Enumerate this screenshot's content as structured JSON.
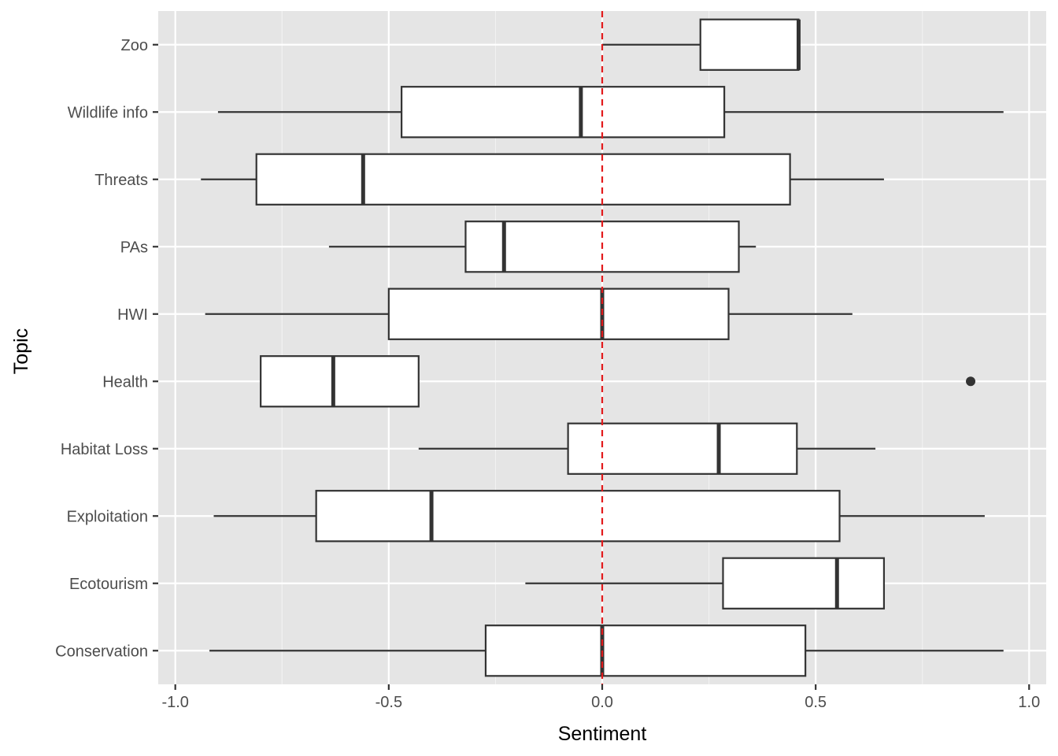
{
  "chart_data": {
    "type": "boxplot",
    "orientation": "horizontal",
    "xlabel": "Sentiment",
    "ylabel": "Topic",
    "xlim": [
      -1.04,
      1.04
    ],
    "x_ticks": [
      -1.0,
      -0.5,
      0.0,
      0.5,
      1.0
    ],
    "x_tick_labels": [
      "-1.0",
      "-0.5",
      "0.0",
      "0.5",
      "1.0"
    ],
    "reference_line": {
      "x": 0.0,
      "style": "dashed",
      "color": "#e31a1c"
    },
    "categories": [
      "Zoo",
      "Wildlife info",
      "Threats",
      "PAs",
      "HWI",
      "Health",
      "Habitat Loss",
      "Exploitation",
      "Ecotourism",
      "Conservation"
    ],
    "boxes": [
      {
        "category": "Zoo",
        "whisker_low": 0.0,
        "q1": 0.23,
        "median": 0.46,
        "q3": 0.46,
        "whisker_high": 0.46,
        "outliers": []
      },
      {
        "category": "Wildlife info",
        "whisker_low": -0.9,
        "q1": -0.47,
        "median": -0.05,
        "q3": 0.286,
        "whisker_high": 0.94,
        "outliers": []
      },
      {
        "category": "Threats",
        "whisker_low": -0.94,
        "q1": -0.81,
        "median": -0.56,
        "q3": 0.44,
        "whisker_high": 0.66,
        "outliers": []
      },
      {
        "category": "PAs",
        "whisker_low": -0.64,
        "q1": -0.32,
        "median": -0.23,
        "q3": 0.32,
        "whisker_high": 0.36,
        "outliers": []
      },
      {
        "category": "HWI",
        "whisker_low": -0.93,
        "q1": -0.5,
        "median": 0.0,
        "q3": 0.296,
        "whisker_high": 0.586,
        "outliers": []
      },
      {
        "category": "Health",
        "whisker_low": -0.8,
        "q1": -0.8,
        "median": -0.63,
        "q3": -0.43,
        "whisker_high": -0.43,
        "outliers": [
          0.863
        ]
      },
      {
        "category": "Habitat Loss",
        "whisker_low": -0.43,
        "q1": -0.08,
        "median": 0.273,
        "q3": 0.456,
        "whisker_high": 0.64,
        "outliers": []
      },
      {
        "category": "Exploitation",
        "whisker_low": -0.91,
        "q1": -0.67,
        "median": -0.4,
        "q3": 0.556,
        "whisker_high": 0.896,
        "outliers": []
      },
      {
        "category": "Ecotourism",
        "whisker_low": -0.18,
        "q1": 0.283,
        "median": 0.55,
        "q3": 0.66,
        "whisker_high": 0.66,
        "outliers": []
      },
      {
        "category": "Conservation",
        "whisker_low": -0.92,
        "q1": -0.273,
        "median": 0.0,
        "q3": 0.476,
        "whisker_high": 0.94,
        "outliers": []
      }
    ],
    "grid": true,
    "legend": "none",
    "colors": {
      "panel_background": "#e5e5e5",
      "grid_major": "#ffffff",
      "grid_minor": "#f2f2f2",
      "box_fill": "#ffffff",
      "box_stroke": "#333333",
      "tick_label": "#4d4d4d",
      "axis_title": "#000000",
      "reference_line": "#e31a1c"
    }
  }
}
